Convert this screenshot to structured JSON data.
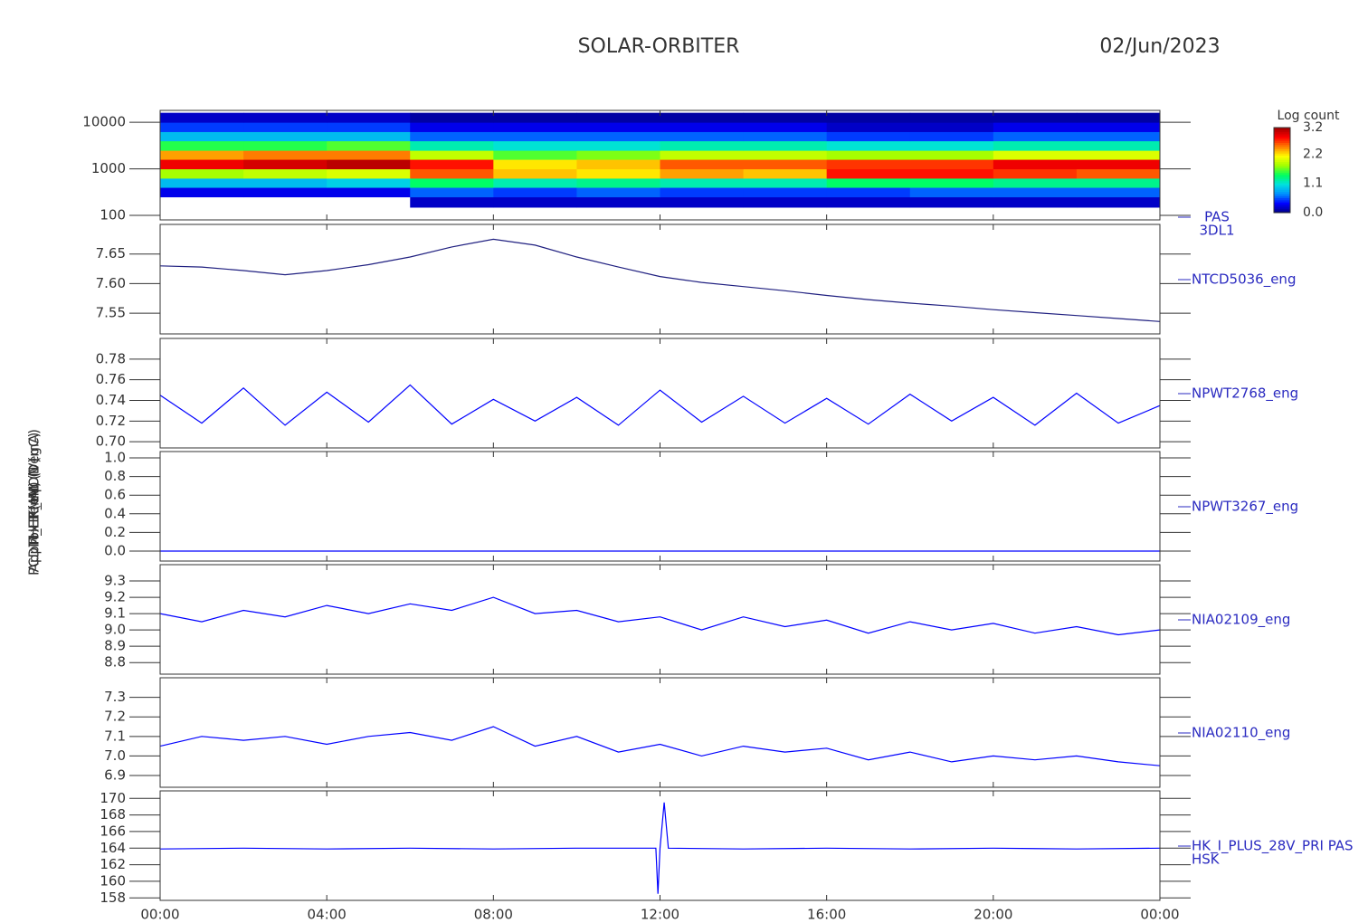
{
  "title": "SOLAR-ORBITER",
  "date": "02/Jun/2023",
  "chart_data": [
    {
      "type": "heatmap",
      "ylabel": "E (eV)",
      "label": [
        "PAS",
        "3DL1"
      ],
      "log_y": true,
      "xlim": [
        0,
        24
      ],
      "ylim": [
        80,
        18000
      ],
      "yticks": [
        100,
        1000,
        10000
      ],
      "xbins": [
        0,
        2,
        4,
        6,
        8,
        10,
        12,
        14,
        16,
        18,
        20,
        22,
        24
      ],
      "ybins": [
        150,
        250,
        400,
        630,
        1000,
        1600,
        2500,
        4000,
        6300,
        10000,
        16000
      ],
      "z": [
        [
          null,
          null,
          null,
          0.2,
          0.2,
          0.2,
          0.2,
          0.2,
          0.2,
          0.2,
          0.2,
          0.2
        ],
        [
          0.3,
          0.3,
          0.3,
          0.6,
          0.5,
          0.6,
          0.5,
          0.5,
          0.5,
          0.6,
          0.6,
          0.6
        ],
        [
          0.9,
          0.9,
          1.0,
          1.4,
          1.2,
          1.3,
          1.2,
          1.2,
          1.4,
          1.4,
          1.3,
          1.3
        ],
        [
          1.8,
          1.9,
          2.0,
          2.6,
          2.3,
          2.2,
          2.4,
          2.3,
          2.8,
          2.8,
          2.7,
          2.6
        ],
        [
          2.9,
          3.0,
          3.1,
          2.8,
          2.2,
          2.3,
          2.6,
          2.6,
          2.7,
          2.7,
          2.9,
          2.9
        ],
        [
          2.4,
          2.5,
          2.5,
          1.9,
          1.6,
          1.7,
          1.9,
          1.9,
          1.8,
          1.8,
          2.0,
          2.0
        ],
        [
          1.5,
          1.5,
          1.6,
          1.2,
          1.1,
          1.1,
          1.2,
          1.2,
          1.1,
          1.1,
          1.2,
          1.2
        ],
        [
          0.9,
          0.9,
          0.9,
          0.6,
          0.6,
          0.6,
          0.6,
          0.6,
          0.5,
          0.5,
          0.6,
          0.6
        ],
        [
          0.5,
          0.5,
          0.5,
          0.3,
          0.3,
          0.3,
          0.3,
          0.3,
          0.2,
          0.2,
          0.3,
          0.3
        ],
        [
          0.2,
          0.2,
          0.2,
          0.1,
          0.1,
          0.1,
          0.1,
          0.1,
          0.1,
          0.1,
          0.1,
          0.1
        ]
      ],
      "colorbar": {
        "title": "Log count",
        "zlim": [
          0,
          3.2
        ],
        "ticks": [
          {
            "value": 0,
            "label": "0.0"
          },
          1.1,
          2.2,
          3.2
        ],
        "colors": [
          "#000080",
          "#0000ff",
          "#0090ff",
          "#00e0e0",
          "#00ff60",
          "#a0ff00",
          "#ffff00",
          "#ff8000",
          "#ff0000",
          "#a00000"
        ]
      }
    },
    {
      "type": "line",
      "ylabel": "Approx Temp (DegC)",
      "label": [
        "NTCD5036_eng"
      ],
      "color": "#202080",
      "xlim": [
        0,
        24
      ],
      "ylim": [
        7.515,
        7.7
      ],
      "yticks": [
        7.55,
        {
          "value": 7.6,
          "label": "7.60"
        },
        7.65
      ],
      "x": [
        0,
        1,
        2,
        3,
        4,
        5,
        6,
        7,
        8,
        9,
        10,
        11,
        12,
        13,
        14,
        15,
        16,
        17,
        18,
        19,
        20,
        21,
        22,
        23,
        24
      ],
      "values": [
        7.63,
        7.628,
        7.622,
        7.615,
        7.622,
        7.632,
        7.645,
        7.662,
        7.675,
        7.665,
        7.645,
        7.628,
        7.612,
        7.602,
        7.595,
        7.588,
        7.58,
        7.573,
        7.567,
        7.562,
        7.556,
        7.551,
        7.546,
        7.541,
        7.536
      ]
    },
    {
      "type": "line",
      "label": [
        "NPWT2768_eng"
      ],
      "color": "#0000ff",
      "xlim": [
        0,
        24
      ],
      "ylim": [
        0.694,
        0.8
      ],
      "yticks": [
        {
          "value": 0.7,
          "label": "0.70"
        },
        0.72,
        0.74,
        0.76,
        0.78
      ],
      "x": [
        0,
        1,
        2,
        3,
        4,
        5,
        6,
        7,
        8,
        9,
        10,
        11,
        12,
        13,
        14,
        15,
        16,
        17,
        18,
        19,
        20,
        21,
        22,
        23,
        24
      ],
      "values": [
        0.745,
        0.718,
        0.752,
        0.716,
        0.748,
        0.719,
        0.755,
        0.717,
        0.741,
        0.72,
        0.743,
        0.716,
        0.75,
        0.719,
        0.744,
        0.718,
        0.742,
        0.717,
        0.746,
        0.72,
        0.743,
        0.716,
        0.747,
        0.718,
        0.735
      ]
    },
    {
      "type": "line",
      "label": [
        "NPWT3267_eng"
      ],
      "color": "#0000ff",
      "xlim": [
        0,
        24
      ],
      "ylim": [
        -0.107,
        1.068
      ],
      "yticks": [
        {
          "value": 0,
          "label": "0.0"
        },
        0.2,
        0.4,
        0.6,
        0.8,
        {
          "value": 1,
          "label": "1.0"
        }
      ],
      "x": [
        0,
        24
      ],
      "values": [
        0,
        0
      ]
    },
    {
      "type": "line",
      "ylabel": "THERMAL (V)",
      "label": [
        "NIA02109_eng"
      ],
      "color": "#0000ff",
      "xlim": [
        0,
        24
      ],
      "ylim": [
        8.729,
        9.4
      ],
      "yticks": [
        8.8,
        8.9,
        {
          "value": 9,
          "label": "9.0"
        },
        9.1,
        9.2,
        9.3
      ],
      "x": [
        0,
        1,
        2,
        3,
        4,
        5,
        6,
        7,
        8,
        9,
        10,
        11,
        12,
        13,
        14,
        15,
        16,
        17,
        18,
        19,
        20,
        21,
        22,
        23,
        24
      ],
      "values": [
        9.1,
        9.05,
        9.12,
        9.08,
        9.15,
        9.1,
        9.16,
        9.12,
        9.2,
        9.1,
        9.12,
        9.05,
        9.08,
        9.0,
        9.08,
        9.02,
        9.06,
        8.98,
        9.05,
        9.0,
        9.04,
        8.98,
        9.02,
        8.97,
        9.0
      ]
    },
    {
      "type": "line",
      "label": [
        "NIA02110_eng"
      ],
      "color": "#0000ff",
      "xlim": [
        0,
        24
      ],
      "ylim": [
        6.84,
        7.4
      ],
      "yticks": [
        6.9,
        {
          "value": 7,
          "label": "7.0"
        },
        7.1,
        7.2,
        7.3
      ],
      "x": [
        0,
        1,
        2,
        3,
        4,
        5,
        6,
        7,
        8,
        9,
        10,
        11,
        12,
        13,
        14,
        15,
        16,
        17,
        18,
        19,
        20,
        21,
        22,
        23,
        24
      ],
      "values": [
        7.05,
        7.1,
        7.08,
        7.1,
        7.06,
        7.1,
        7.12,
        7.08,
        7.15,
        7.05,
        7.1,
        7.02,
        7.06,
        7.0,
        7.05,
        7.02,
        7.04,
        6.98,
        7.02,
        6.97,
        7.0,
        6.98,
        7.0,
        6.97,
        6.95
      ]
    },
    {
      "type": "line",
      "ylabel": "PCDM_HK_IMON (mA)",
      "label": [
        "HK_I_PLUS_28V_PRI PAS",
        "HSK"
      ],
      "color": "#0000ff",
      "xlim": [
        0,
        24
      ],
      "ylim": [
        157.7,
        170.9
      ],
      "yticks": [
        158,
        160,
        162,
        164,
        166,
        168,
        170
      ],
      "x": [
        0,
        2,
        4,
        6,
        8,
        10,
        11.9,
        11.95,
        12,
        12.1,
        12.2,
        14,
        16,
        18,
        20,
        22,
        24
      ],
      "values": [
        163.9,
        164,
        163.9,
        164,
        163.9,
        164,
        164,
        158.5,
        164,
        169.5,
        164,
        163.9,
        164,
        163.9,
        164,
        163.9,
        164
      ],
      "xticks": [
        {
          "value": 0,
          "label": "00:00"
        },
        {
          "value": 4,
          "label": "04:00"
        },
        {
          "value": 8,
          "label": "08:00"
        },
        {
          "value": 12,
          "label": "12:00"
        },
        {
          "value": 16,
          "label": "16:00"
        },
        {
          "value": 20,
          "label": "20:00"
        },
        {
          "value": 24,
          "label": "00:00"
        }
      ]
    }
  ]
}
